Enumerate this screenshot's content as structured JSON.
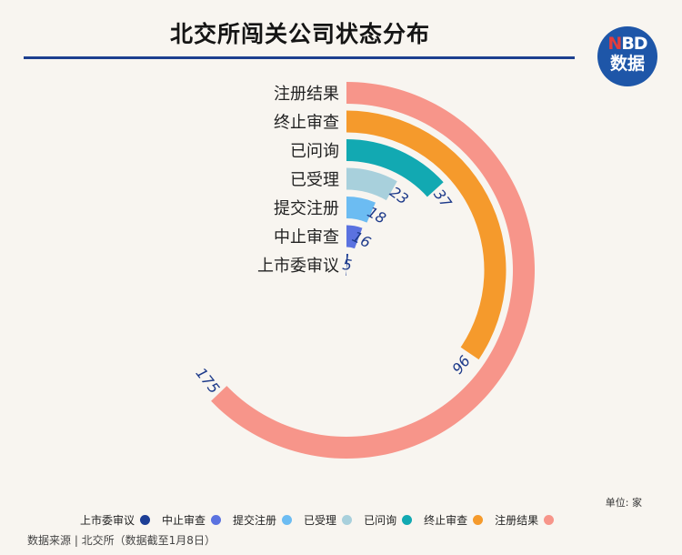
{
  "header": {
    "title": "北交所闯关公司状态分布",
    "logo_line1": "NBD",
    "logo_line2": "数据"
  },
  "unit_label": "单位: 家",
  "source": "数据来源 | 北交所（数据截至1月8日）",
  "chart_data": {
    "type": "radial-bar",
    "title": "北交所闯关公司状态分布",
    "unit": "家",
    "max": 175,
    "legend_position": "bottom",
    "grid": false,
    "categories": [
      "注册结果",
      "终止审查",
      "已问询",
      "已受理",
      "提交注册",
      "中止审查",
      "上市委审议"
    ],
    "values": [
      175,
      96,
      37,
      23,
      18,
      16,
      5
    ],
    "colors": [
      "#f7958a",
      "#f59a2c",
      "#12a9b2",
      "#a8d0dc",
      "#6cbcf2",
      "#5b72e0",
      "#1d3e95"
    ],
    "legend": [
      "上市委审议",
      "中止审查",
      "提交注册",
      "已受理",
      "已问询",
      "终止审查",
      "注册结果"
    ],
    "legend_colors": [
      "#1d3e95",
      "#5b72e0",
      "#6cbcf2",
      "#a8d0dc",
      "#12a9b2",
      "#f59a2c",
      "#f7958a"
    ]
  }
}
